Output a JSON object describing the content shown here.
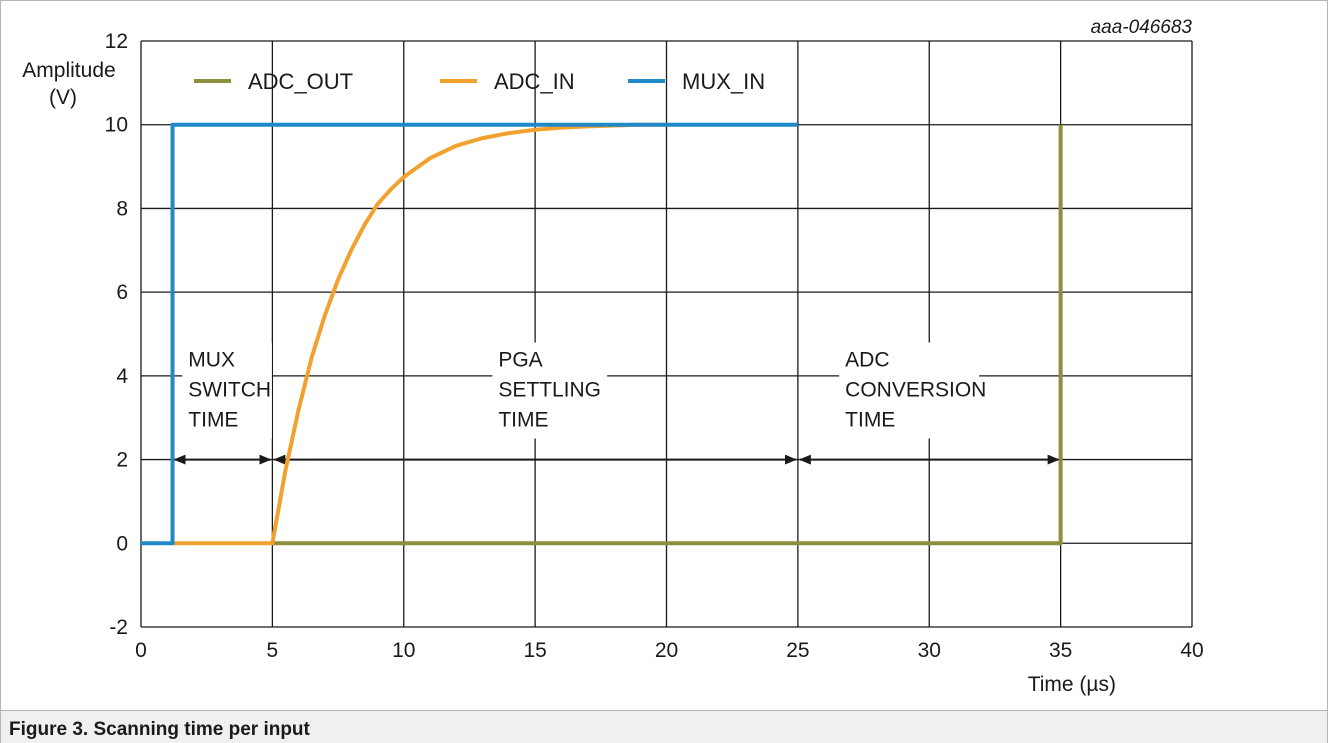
{
  "figure_id": "aaa-046683",
  "caption": "Figure 3.  Scanning time per input",
  "chart_data": {
    "type": "line",
    "ylabel_lines": [
      "Amplitude",
      "(V)"
    ],
    "xlabel": "Time (µs)",
    "xlim": [
      0,
      40
    ],
    "ylim": [
      -2,
      12
    ],
    "x_ticks": [
      0,
      5,
      10,
      15,
      20,
      25,
      30,
      35,
      40
    ],
    "y_ticks": [
      -2,
      0,
      2,
      4,
      6,
      8,
      10,
      12
    ],
    "grid": true,
    "legend_position": "top-left",
    "series": [
      {
        "name": "ADC_OUT",
        "color": "#8c8f3c",
        "points": [
          [
            5,
            0
          ],
          [
            35,
            0
          ],
          [
            35,
            10
          ]
        ]
      },
      {
        "name": "ADC_IN",
        "color": "#f2a12e",
        "points": [
          [
            1.2,
            0
          ],
          [
            5,
            0
          ],
          [
            5.5,
            1.75
          ],
          [
            6,
            3.2
          ],
          [
            6.5,
            4.45
          ],
          [
            7,
            5.45
          ],
          [
            7.5,
            6.3
          ],
          [
            8,
            7.0
          ],
          [
            8.5,
            7.6
          ],
          [
            9,
            8.1
          ],
          [
            9.5,
            8.45
          ],
          [
            10,
            8.75
          ],
          [
            11,
            9.2
          ],
          [
            12,
            9.5
          ],
          [
            13,
            9.68
          ],
          [
            14,
            9.8
          ],
          [
            15,
            9.88
          ],
          [
            16,
            9.93
          ],
          [
            17,
            9.96
          ],
          [
            18,
            9.98
          ],
          [
            19,
            10.0
          ],
          [
            20,
            10.0
          ]
        ]
      },
      {
        "name": "MUX_IN",
        "color": "#1f8ac7",
        "points": [
          [
            0,
            0
          ],
          [
            1.2,
            0
          ],
          [
            1.2,
            10
          ],
          [
            25,
            10
          ]
        ]
      }
    ],
    "annotations": [
      {
        "id": "mux",
        "lines": [
          "MUX",
          "SWITCH",
          "TIME"
        ],
        "x": 1.8,
        "y_top": 4.7,
        "span": [
          1.2,
          5
        ]
      },
      {
        "id": "pga",
        "lines": [
          "PGA",
          "SETTLING",
          "TIME"
        ],
        "x": 13.6,
        "y_top": 4.7,
        "span": [
          5,
          25
        ]
      },
      {
        "id": "adc",
        "lines": [
          "ADC",
          "CONVERSION",
          "TIME"
        ],
        "x": 26.8,
        "y_top": 4.7,
        "span": [
          25,
          35
        ]
      }
    ],
    "arrow_level": 2
  }
}
